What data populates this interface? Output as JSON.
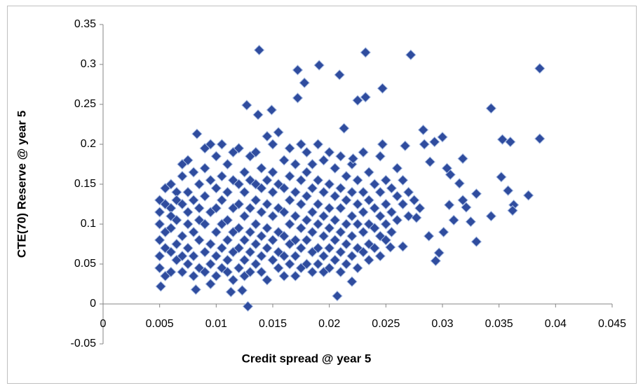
{
  "chart_data": {
    "type": "scatter",
    "x_label": "Credit spread @ year 5",
    "y_label": "CTE(70) Reserve @ year 5",
    "xlim": [
      0,
      0.045
    ],
    "xticks": [
      0,
      0.005,
      0.01,
      0.015,
      0.02,
      0.025,
      0.03,
      0.035,
      0.04,
      0.045
    ],
    "ylim": [
      -0.05,
      0.35
    ],
    "yticks": [
      -0.05,
      0,
      0.05,
      0.1,
      0.15,
      0.2,
      0.25,
      0.3,
      0.35
    ],
    "grid": false,
    "color": "#2f4c9e",
    "x": [
      0.005,
      0.005,
      0.005,
      0.005,
      0.005,
      0.005,
      0.0055,
      0.0055,
      0.0055,
      0.0055,
      0.0055,
      0.006,
      0.006,
      0.006,
      0.006,
      0.006,
      0.006,
      0.0065,
      0.0065,
      0.0065,
      0.0065,
      0.0065,
      0.007,
      0.007,
      0.007,
      0.007,
      0.007,
      0.007,
      0.0075,
      0.0075,
      0.0075,
      0.0075,
      0.0075,
      0.0075,
      0.008,
      0.008,
      0.008,
      0.008,
      0.008,
      0.0085,
      0.0085,
      0.0085,
      0.0085,
      0.0085,
      0.009,
      0.009,
      0.009,
      0.009,
      0.009,
      0.009,
      0.0095,
      0.0095,
      0.0095,
      0.0095,
      0.0095,
      0.0095,
      0.01,
      0.01,
      0.01,
      0.01,
      0.01,
      0.01,
      0.0105,
      0.0105,
      0.0105,
      0.0105,
      0.0105,
      0.0105,
      0.011,
      0.011,
      0.011,
      0.011,
      0.011,
      0.011,
      0.0115,
      0.0115,
      0.0115,
      0.0115,
      0.0115,
      0.0115,
      0.012,
      0.012,
      0.012,
      0.012,
      0.012,
      0.012,
      0.0125,
      0.0125,
      0.0125,
      0.0125,
      0.0125,
      0.0125,
      0.013,
      0.013,
      0.013,
      0.013,
      0.013,
      0.013,
      0.0135,
      0.0135,
      0.0135,
      0.0135,
      0.0135,
      0.0135,
      0.014,
      0.014,
      0.014,
      0.014,
      0.014,
      0.014,
      0.0145,
      0.0145,
      0.0145,
      0.0145,
      0.0145,
      0.0145,
      0.015,
      0.015,
      0.015,
      0.015,
      0.015,
      0.015,
      0.0155,
      0.0155,
      0.0155,
      0.0155,
      0.0155,
      0.0155,
      0.016,
      0.016,
      0.016,
      0.016,
      0.016,
      0.016,
      0.0165,
      0.0165,
      0.0165,
      0.0165,
      0.0165,
      0.0165,
      0.017,
      0.017,
      0.017,
      0.017,
      0.017,
      0.017,
      0.0175,
      0.0175,
      0.0175,
      0.0175,
      0.0175,
      0.0175,
      0.018,
      0.018,
      0.018,
      0.018,
      0.018,
      0.018,
      0.0185,
      0.0185,
      0.0185,
      0.0185,
      0.0185,
      0.0185,
      0.019,
      0.019,
      0.019,
      0.019,
      0.019,
      0.019,
      0.0195,
      0.0195,
      0.0195,
      0.0195,
      0.0195,
      0.0195,
      0.02,
      0.02,
      0.02,
      0.02,
      0.02,
      0.02,
      0.0205,
      0.0205,
      0.0205,
      0.0205,
      0.0205,
      0.021,
      0.021,
      0.021,
      0.021,
      0.021,
      0.021,
      0.0215,
      0.0215,
      0.0215,
      0.0215,
      0.0215,
      0.022,
      0.022,
      0.022,
      0.022,
      0.022,
      0.022,
      0.0225,
      0.0225,
      0.0225,
      0.0225,
      0.0225,
      0.023,
      0.023,
      0.023,
      0.023,
      0.023,
      0.0235,
      0.0235,
      0.0235,
      0.0235,
      0.0235,
      0.024,
      0.024,
      0.024,
      0.024,
      0.0245,
      0.0245,
      0.0245,
      0.0245,
      0.0245,
      0.025,
      0.025,
      0.025,
      0.025,
      0.0255,
      0.0255,
      0.0255,
      0.026,
      0.026,
      0.026,
      0.0265,
      0.0265,
      0.027,
      0.027,
      0.0275,
      0.028,
      0.0138,
      0.0232,
      0.0272,
      0.0386,
      0.0191,
      0.0172,
      0.0209,
      0.0178,
      0.0247,
      0.0232,
      0.0225,
      0.0172,
      0.0127,
      0.0149,
      0.0137,
      0.0343,
      0.0386,
      0.0353,
      0.036,
      0.0283,
      0.0213,
      0.0083,
      0.03,
      0.0293,
      0.0318,
      0.0289,
      0.0352,
      0.0358,
      0.0376,
      0.0363,
      0.0362,
      0.0343,
      0.033,
      0.033,
      0.0294,
      0.0297,
      0.0301,
      0.0288,
      0.0128,
      0.0207,
      0.0051,
      0.0082,
      0.0113,
      0.0123,
      0.0265,
      0.0254,
      0.031,
      0.0325,
      0.0321,
      0.0315,
      0.0307,
      0.0304,
      0.0247,
      0.0267,
      0.0221,
      0.0284,
      0.0306,
      0.0318,
      0.0277
    ],
    "values": [
      0.13,
      0.1,
      0.08,
      0.06,
      0.045,
      0.115,
      0.145,
      0.09,
      0.07,
      0.035,
      0.125,
      0.15,
      0.12,
      0.095,
      0.065,
      0.04,
      0.11,
      0.14,
      0.105,
      0.075,
      0.055,
      0.13,
      0.175,
      0.16,
      0.125,
      0.085,
      0.06,
      0.04,
      0.18,
      0.14,
      0.1,
      0.07,
      0.05,
      0.115,
      0.165,
      0.13,
      0.09,
      0.06,
      0.035,
      0.15,
      0.12,
      0.08,
      0.045,
      0.105,
      0.195,
      0.17,
      0.135,
      0.1,
      0.065,
      0.04,
      0.2,
      0.155,
      0.115,
      0.075,
      0.05,
      0.025,
      0.185,
      0.145,
      0.12,
      0.09,
      0.06,
      0.035,
      0.16,
      0.13,
      0.1,
      0.07,
      0.045,
      0.2,
      0.175,
      0.14,
      0.105,
      0.08,
      0.055,
      0.04,
      0.19,
      0.155,
      0.12,
      0.09,
      0.065,
      0.03,
      0.195,
      0.15,
      0.125,
      0.095,
      0.07,
      0.045,
      0.165,
      0.14,
      0.11,
      0.08,
      0.055,
      0.035,
      0.185,
      0.155,
      0.12,
      0.09,
      0.065,
      0.04,
      0.19,
      0.15,
      0.13,
      0.1,
      0.075,
      0.05,
      0.17,
      0.145,
      0.115,
      0.085,
      0.06,
      0.04,
      0.21,
      0.155,
      0.125,
      0.095,
      0.07,
      0.03,
      0.2,
      0.165,
      0.14,
      0.11,
      0.08,
      0.055,
      0.215,
      0.15,
      0.12,
      0.09,
      0.065,
      0.045,
      0.18,
      0.145,
      0.115,
      0.085,
      0.06,
      0.035,
      0.195,
      0.16,
      0.13,
      0.1,
      0.075,
      0.05,
      0.175,
      0.14,
      0.11,
      0.08,
      0.06,
      0.035,
      0.2,
      0.155,
      0.125,
      0.095,
      0.07,
      0.045,
      0.165,
      0.135,
      0.105,
      0.08,
      0.05,
      0.19,
      0.175,
      0.145,
      0.115,
      0.09,
      0.065,
      0.04,
      0.2,
      0.155,
      0.125,
      0.1,
      0.07,
      0.05,
      0.18,
      0.14,
      0.11,
      0.085,
      0.06,
      0.04,
      0.19,
      0.15,
      0.12,
      0.095,
      0.07,
      0.045,
      0.17,
      0.135,
      0.105,
      0.08,
      0.055,
      0.185,
      0.145,
      0.12,
      0.09,
      0.065,
      0.04,
      0.16,
      0.13,
      0.1,
      0.075,
      0.05,
      0.175,
      0.14,
      0.11,
      0.085,
      0.06,
      0.028,
      0.155,
      0.125,
      0.1,
      0.07,
      0.045,
      0.19,
      0.14,
      0.115,
      0.09,
      0.065,
      0.165,
      0.13,
      0.1,
      0.075,
      0.055,
      0.15,
      0.12,
      0.095,
      0.07,
      0.185,
      0.14,
      0.11,
      0.085,
      0.06,
      0.155,
      0.125,
      0.1,
      0.08,
      0.145,
      0.115,
      0.09,
      0.17,
      0.135,
      0.105,
      0.125,
      0.155,
      0.14,
      0.11,
      0.13,
      0.12,
      0.318,
      0.315,
      0.312,
      0.295,
      0.299,
      0.293,
      0.287,
      0.277,
      0.27,
      0.259,
      0.255,
      0.258,
      0.249,
      0.243,
      0.237,
      0.245,
      0.207,
      0.206,
      0.203,
      0.218,
      0.22,
      0.213,
      0.209,
      0.203,
      0.182,
      0.178,
      0.159,
      0.142,
      0.136,
      0.124,
      0.117,
      0.11,
      0.138,
      0.078,
      0.054,
      0.064,
      0.09,
      0.085,
      -0.003,
      0.01,
      0.022,
      0.018,
      0.015,
      0.017,
      0.072,
      0.071,
      0.105,
      0.103,
      0.121,
      0.151,
      0.162,
      0.17,
      0.2,
      0.198,
      0.182,
      0.2,
      0.124,
      0.13,
      0.108
    ]
  }
}
